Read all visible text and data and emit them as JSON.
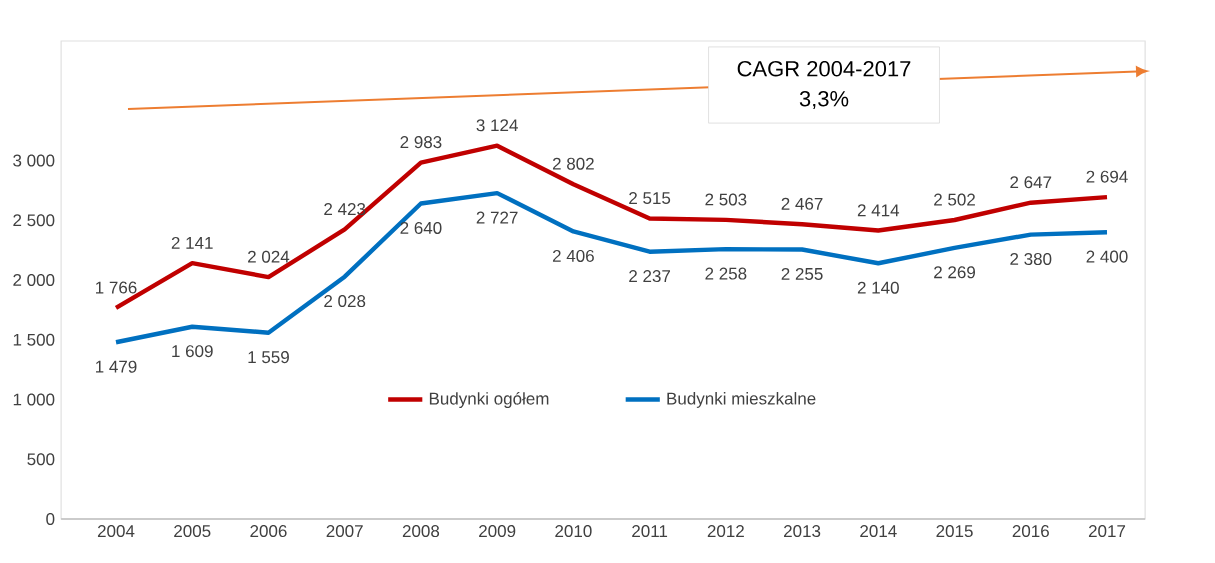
{
  "chart_data": {
    "type": "line",
    "categories": [
      "2004",
      "2005",
      "2006",
      "2007",
      "2008",
      "2009",
      "2010",
      "2011",
      "2012",
      "2013",
      "2014",
      "2015",
      "2016",
      "2017"
    ],
    "series": [
      {
        "name": "Budynki ogółem",
        "color": "#c00000",
        "values": [
          1766,
          2141,
          2024,
          2423,
          2983,
          3124,
          2802,
          2515,
          2503,
          2467,
          2414,
          2502,
          2647,
          2694
        ],
        "value_labels": [
          "1 766",
          "2 141",
          "2 024",
          "2 423",
          "2 983",
          "3 124",
          "2 802",
          "2 515",
          "2 503",
          "2 467",
          "2 414",
          "2 502",
          "2 647",
          "2 694"
        ]
      },
      {
        "name": "Budynki mieszkalne",
        "color": "#0070c0",
        "values": [
          1479,
          1609,
          1559,
          2028,
          2640,
          2727,
          2406,
          2237,
          2258,
          2255,
          2140,
          2269,
          2380,
          2400
        ],
        "value_labels": [
          "1 479",
          "1 609",
          "1 559",
          "2 028",
          "2 640",
          "2 727",
          "2 406",
          "2 237",
          "2 258",
          "2 255",
          "2 140",
          "2 269",
          "2 380",
          "2 400"
        ]
      }
    ],
    "ylim": [
      0,
      4000
    ],
    "yticks": [
      0,
      500,
      {
        "value": 1000,
        "label": "1 000"
      },
      {
        "value": 1500,
        "label": "1 500"
      },
      {
        "value": 2000,
        "label": "2 000"
      },
      {
        "value": 2500,
        "label": "2 500"
      },
      {
        "value": 3000,
        "label": "3 000"
      }
    ],
    "annotations": [
      "CAGR 2004-2017",
      "3,3%"
    ],
    "legend": "bottom",
    "grid": false,
    "marker": "none",
    "line_style": "solid"
  }
}
